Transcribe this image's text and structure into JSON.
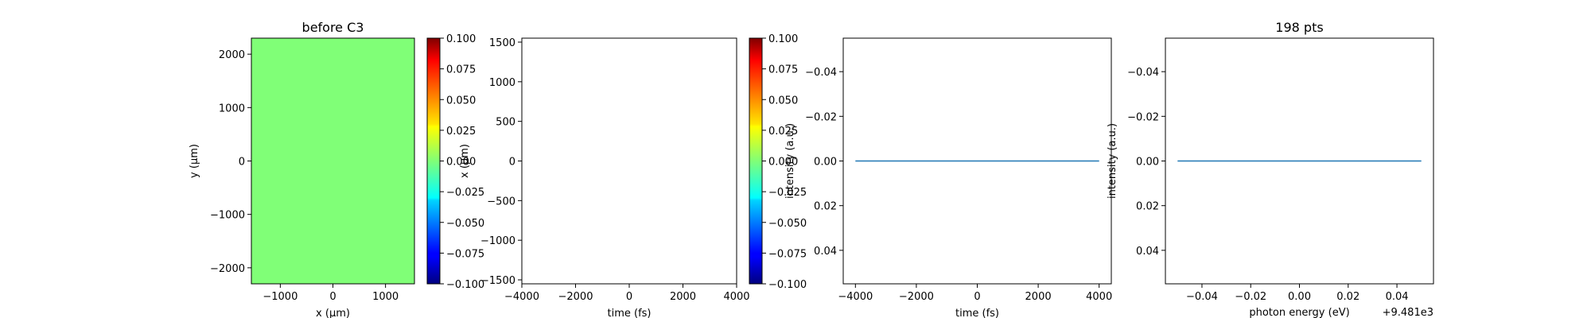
{
  "chart_data": [
    {
      "type": "heatmap",
      "title": "before C3",
      "xlabel": "x (μm)",
      "ylabel": "y (μm)",
      "xlim": [
        -1550,
        1550
      ],
      "ylim": [
        2300,
        -2300
      ],
      "xticks": [
        -1000,
        0,
        1000
      ],
      "xtick_labels": [
        "−1000",
        "0",
        "1000"
      ],
      "yticks": [
        -2000,
        -1000,
        0,
        1000,
        2000
      ],
      "ytick_labels": [
        "−2000",
        "−1000",
        "0",
        "1000",
        "2000"
      ],
      "z_constant": 0.0,
      "fill_color": "#80ff77",
      "colorbar": {
        "range": [
          -0.1,
          0.1
        ],
        "ticks": [
          0.1,
          0.075,
          0.05,
          0.025,
          0.0,
          -0.025,
          -0.05,
          -0.075,
          -0.1
        ],
        "tick_labels": [
          "0.100",
          "0.075",
          "0.050",
          "0.025",
          "0.000",
          "−0.025",
          "−0.050",
          "−0.075",
          "−0.100"
        ],
        "colormap": "jet"
      }
    },
    {
      "type": "heatmap",
      "title": "",
      "xlabel": "time (fs)",
      "ylabel": "x (μm)",
      "xlim": [
        -4000,
        4000
      ],
      "ylim": [
        1550,
        -1550
      ],
      "xticks": [
        -4000,
        -2000,
        0,
        2000,
        4000
      ],
      "xtick_labels": [
        "−4000",
        "−2000",
        "0",
        "2000",
        "4000"
      ],
      "yticks": [
        -1500,
        -1000,
        -500,
        0,
        500,
        1000,
        1500
      ],
      "ytick_labels": [
        "−1500",
        "−1000",
        "−500",
        "0",
        "500",
        "1000",
        "1500"
      ],
      "fill_color": "#ffffff",
      "colorbar": {
        "range": [
          -0.1,
          0.1
        ],
        "ticks": [
          0.1,
          0.075,
          0.05,
          0.025,
          0.0,
          -0.025,
          -0.05,
          -0.075,
          -0.1
        ],
        "tick_labels": [
          "0.100",
          "0.075",
          "0.050",
          "0.025",
          "0.000",
          "−0.025",
          "−0.050",
          "−0.075",
          "−0.100"
        ],
        "colormap": "jet"
      }
    },
    {
      "type": "line",
      "title": "",
      "xlabel": "time (fs)",
      "ylabel": "intensity (a.u.)",
      "xlim": [
        -4400,
        4400
      ],
      "ylim": [
        -0.055,
        0.055
      ],
      "xticks": [
        -4000,
        -2000,
        0,
        2000,
        4000
      ],
      "xtick_labels": [
        "−4000",
        "−2000",
        "0",
        "2000",
        "4000"
      ],
      "yticks": [
        0.04,
        0.02,
        0.0,
        -0.02,
        -0.04
      ],
      "ytick_labels": [
        "0.04",
        "0.02",
        "0.00",
        "−0.02",
        "−0.04"
      ],
      "series": [
        {
          "x": [
            -4000,
            4000
          ],
          "y": [
            0,
            0
          ],
          "color": "#1f77b4"
        }
      ]
    },
    {
      "type": "line",
      "title": "198 pts",
      "xlabel": "photon energy (eV)",
      "ylabel": "intensity (a.u.)",
      "offset_label": "+9.481e3",
      "xlim": [
        -0.055,
        0.055
      ],
      "ylim": [
        -0.055,
        0.055
      ],
      "xticks": [
        -0.04,
        -0.02,
        0.0,
        0.02,
        0.04
      ],
      "xtick_labels": [
        "−0.04",
        "−0.02",
        "0.00",
        "0.02",
        "0.04"
      ],
      "yticks": [
        0.04,
        0.02,
        0.0,
        -0.02,
        -0.04
      ],
      "ytick_labels": [
        "0.04",
        "0.02",
        "0.00",
        "−0.02",
        "−0.04"
      ],
      "series": [
        {
          "x": [
            -0.05,
            0.05
          ],
          "y": [
            0,
            0
          ],
          "color": "#1f77b4"
        }
      ]
    }
  ]
}
